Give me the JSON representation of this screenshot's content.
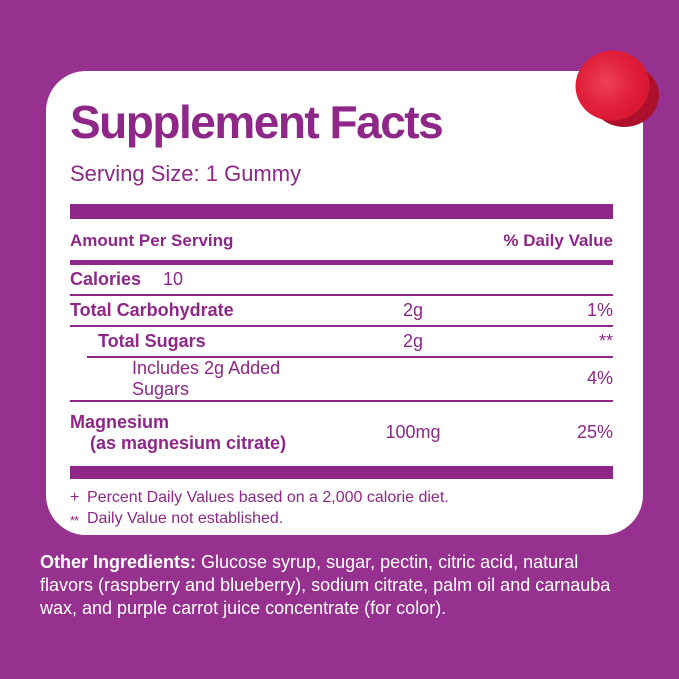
{
  "colors": {
    "background": "#97318F",
    "accent": "#8E2788",
    "card_background": "#FFFFFF",
    "footer_text": "#FFFFFF",
    "gummy_red": "#E1213C",
    "gummy_dark_red": "#A80F2C"
  },
  "icons": {
    "gummy": "red-gummy-sphere"
  },
  "label": {
    "title": "Supplement Facts",
    "serving_size": "Serving Size: 1 Gummy",
    "columns": {
      "amount": "Amount Per Serving",
      "daily_value": "% Daily Value"
    },
    "calories": {
      "name": "Calories",
      "value": "10"
    },
    "rows": [
      {
        "name": "Total Carbohydrate",
        "amount": "2g",
        "daily_value": "1%"
      },
      {
        "name": "Total Sugars",
        "amount": "2g",
        "daily_value": "**"
      },
      {
        "name": "Includes 2g Added Sugars",
        "amount": "",
        "daily_value": "4%"
      },
      {
        "name": "Magnesium",
        "detail": "(as magnesium citrate)",
        "amount": "100mg",
        "daily_value": "25%"
      }
    ],
    "footnotes": [
      {
        "marker": "+",
        "text": "Percent Daily Values based on a 2,000 calorie diet."
      },
      {
        "marker": "**",
        "text": "Daily Value not established."
      }
    ]
  },
  "other_ingredients": {
    "label": "Other Ingredients:",
    "text": " Glucose syrup, sugar, pectin, citric acid, natural flavors (raspberry and blueberry), sodium citrate, palm oil and carnauba wax, and purple carrot juice concentrate (for color)."
  }
}
